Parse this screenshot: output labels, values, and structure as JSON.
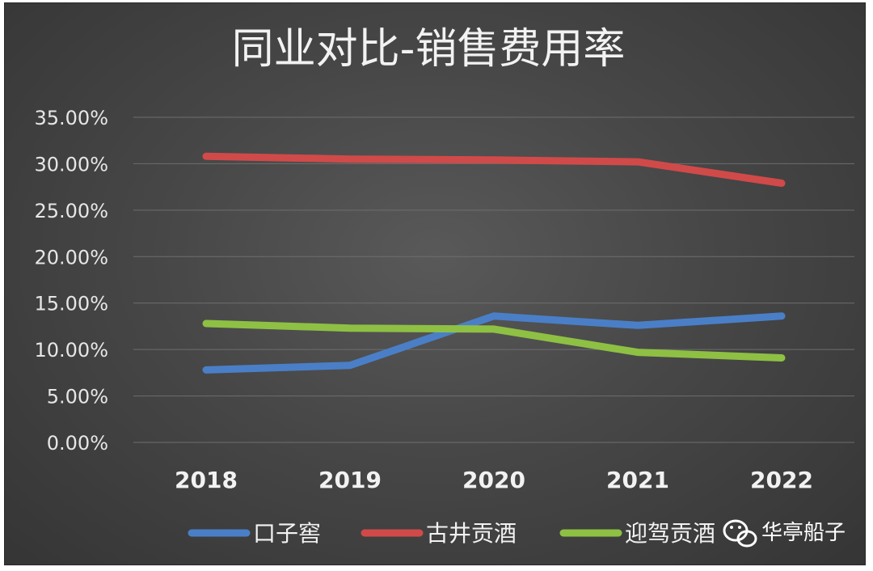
{
  "chart_data": {
    "type": "line",
    "title": "同业对比-销售费用率",
    "categories": [
      "2018",
      "2019",
      "2020",
      "2021",
      "2022"
    ],
    "ylim": [
      0,
      35
    ],
    "yticks": [
      "0.00%",
      "5.00%",
      "10.00%",
      "15.00%",
      "20.00%",
      "25.00%",
      "30.00%",
      "35.00%"
    ],
    "grid": true,
    "legend_position": "bottom",
    "series": [
      {
        "name": "口子窖",
        "color": "#4a7fc7",
        "values": [
          7.8,
          8.3,
          13.6,
          12.6,
          13.6
        ]
      },
      {
        "name": "古井贡酒",
        "color": "#d04a49",
        "values": [
          30.8,
          30.5,
          30.4,
          30.2,
          27.9
        ]
      },
      {
        "name": "迎驾贡酒",
        "color": "#8ec044",
        "values": [
          12.8,
          12.3,
          12.2,
          9.7,
          9.1
        ]
      }
    ]
  },
  "watermark": {
    "text": "华亭船子",
    "icon": "wechat-icon"
  }
}
